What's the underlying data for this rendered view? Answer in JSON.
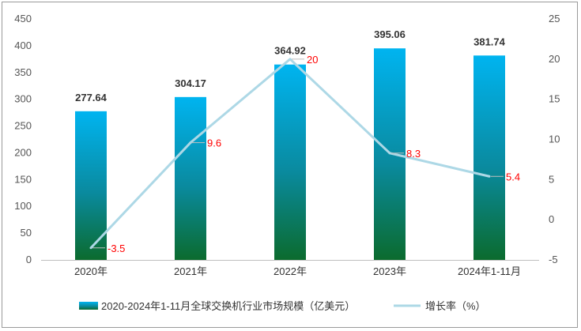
{
  "chart_data": {
    "type": "bar",
    "categories": [
      "2020年",
      "2021年",
      "2022年",
      "2023年",
      "2024年1-11月"
    ],
    "series": [
      {
        "name": "2020-2024年1-11月全球交换机行业市场规模（亿美元）",
        "type": "bar",
        "axis": "left",
        "values": [
          277.64,
          304.17,
          364.92,
          395.06,
          381.74
        ],
        "labels": [
          "277.64",
          "304.17",
          "364.92",
          "395.06",
          "381.74"
        ]
      },
      {
        "name": "增长率（%）",
        "type": "line",
        "axis": "right",
        "values": [
          -3.5,
          9.6,
          20,
          8.3,
          5.4
        ],
        "labels": [
          "-3.5",
          "9.6",
          "20",
          "8.3",
          "5.4"
        ]
      }
    ],
    "y_left": {
      "ylim": [
        0,
        450
      ],
      "ticks": [
        0,
        50,
        100,
        150,
        200,
        250,
        300,
        350,
        400,
        450
      ]
    },
    "y_right": {
      "ylim": [
        -5,
        25
      ],
      "ticks": [
        -5,
        0,
        5,
        10,
        15,
        20,
        25
      ]
    },
    "grid": false,
    "legend": "bottom",
    "colors": {
      "bar_top": "#00b4f0",
      "bar_mid": "#0a8a9e",
      "bar_bottom": "#0b6b2e",
      "line": "#add8e6",
      "rate_label": "#ff0000",
      "axis": "#bfbfbf",
      "border": "#9a9a9a"
    }
  }
}
